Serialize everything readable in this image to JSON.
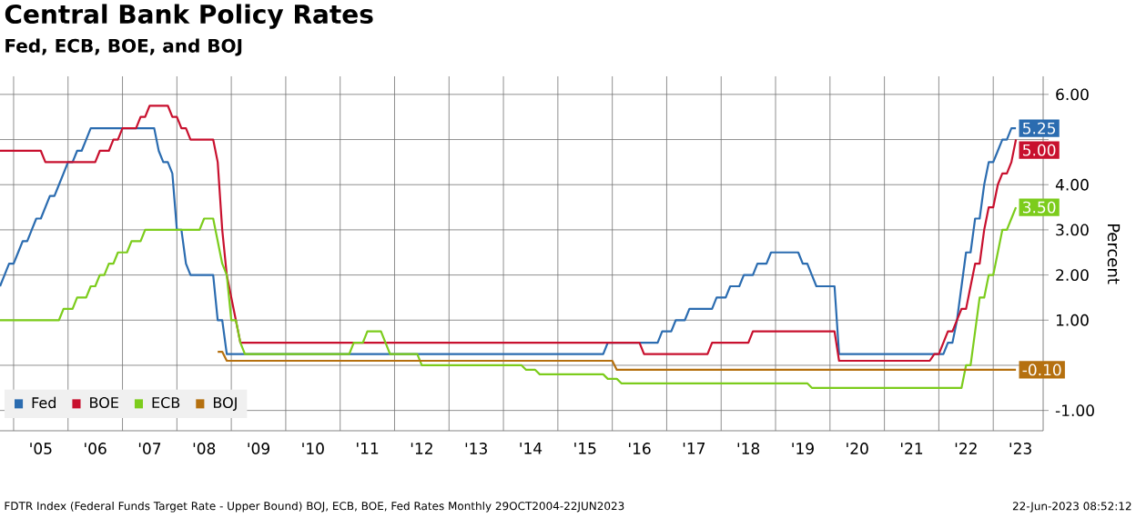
{
  "chart_data": {
    "type": "line",
    "title": "Central Bank Policy Rates",
    "subtitle": "Fed, ECB, BOE, and BOJ",
    "ylabel": "Percent",
    "annotations": [
      "FDTR Index (Federal Funds Target Rate - Upper Bound) BOJ, ECB, BOE, Fed Rates  Monthly 29OCT2004-22JUN2023",
      "22-Jun-2023 08:52:12"
    ],
    "xlim": [
      "2004-10",
      "2023-12"
    ],
    "ylim": [
      -1.45,
      6.4
    ],
    "xticks": [
      {
        "value": "2005",
        "label": null
      },
      {
        "value": "2005-07",
        "label": "'05"
      },
      {
        "value": "2006",
        "label": null
      },
      {
        "value": "2006-07",
        "label": "'06"
      },
      {
        "value": "2007",
        "label": null
      },
      {
        "value": "2007-07",
        "label": "'07"
      },
      {
        "value": "2008",
        "label": null
      },
      {
        "value": "2008-07",
        "label": "'08"
      },
      {
        "value": "2009",
        "label": null
      },
      {
        "value": "2009-07",
        "label": "'09"
      },
      {
        "value": "2010",
        "label": null
      },
      {
        "value": "2010-07",
        "label": "'10"
      },
      {
        "value": "2011",
        "label": null
      },
      {
        "value": "2011-07",
        "label": "'11"
      },
      {
        "value": "2012",
        "label": null
      },
      {
        "value": "2012-07",
        "label": "'12"
      },
      {
        "value": "2013",
        "label": null
      },
      {
        "value": "2013-07",
        "label": "'13"
      },
      {
        "value": "2014",
        "label": null
      },
      {
        "value": "2014-07",
        "label": "'14"
      },
      {
        "value": "2015",
        "label": null
      },
      {
        "value": "2015-07",
        "label": "'15"
      },
      {
        "value": "2016",
        "label": null
      },
      {
        "value": "2016-07",
        "label": "'16"
      },
      {
        "value": "2017",
        "label": null
      },
      {
        "value": "2017-07",
        "label": "'17"
      },
      {
        "value": "2018",
        "label": null
      },
      {
        "value": "2018-07",
        "label": "'18"
      },
      {
        "value": "2019",
        "label": null
      },
      {
        "value": "2019-07",
        "label": "'19"
      },
      {
        "value": "2020",
        "label": null
      },
      {
        "value": "2020-07",
        "label": "'20"
      },
      {
        "value": "2021",
        "label": null
      },
      {
        "value": "2021-07",
        "label": "'21"
      },
      {
        "value": "2022",
        "label": null
      },
      {
        "value": "2022-07",
        "label": "'22"
      },
      {
        "value": "2023",
        "label": null
      },
      {
        "value": "2023-07",
        "label": "'23"
      }
    ],
    "yticks": [
      {
        "value": -1,
        "label": "-1.00"
      },
      {
        "value": 0,
        "label": null
      },
      {
        "value": 1,
        "label": "1.00"
      },
      {
        "value": 2,
        "label": "2.00"
      },
      {
        "value": 3,
        "label": "3.00"
      },
      {
        "value": 4,
        "label": "4.00"
      },
      {
        "value": 5,
        "label": null
      },
      {
        "value": 6,
        "label": "6.00"
      }
    ],
    "grid": true,
    "legend": "bottom left",
    "series": [
      {
        "name": "Fed",
        "color": "#2b6cb0",
        "x": [
          "2004-10",
          "2004-11",
          "2004-12",
          "2005-01",
          "2005-02",
          "2005-03",
          "2005-04",
          "2005-05",
          "2005-06",
          "2005-07",
          "2005-08",
          "2005-09",
          "2005-10",
          "2005-11",
          "2005-12",
          "2006-01",
          "2006-02",
          "2006-03",
          "2006-04",
          "2006-05",
          "2006-06",
          "2007-08",
          "2007-09",
          "2007-10",
          "2007-11",
          "2007-12",
          "2008-01",
          "2008-02",
          "2008-03",
          "2008-04",
          "2008-09",
          "2008-10",
          "2008-11",
          "2008-12",
          "2015-11",
          "2015-12",
          "2016-11",
          "2016-12",
          "2017-02",
          "2017-03",
          "2017-05",
          "2017-06",
          "2017-11",
          "2017-12",
          "2018-02",
          "2018-03",
          "2018-05",
          "2018-06",
          "2018-08",
          "2018-09",
          "2018-11",
          "2018-12",
          "2019-06",
          "2019-07",
          "2019-08",
          "2019-09",
          "2019-10",
          "2020-02",
          "2020-03",
          "2022-02",
          "2022-03",
          "2022-04",
          "2022-05",
          "2022-06",
          "2022-07",
          "2022-08",
          "2022-09",
          "2022-10",
          "2022-11",
          "2022-12",
          "2023-01",
          "2023-02",
          "2023-03",
          "2023-04",
          "2023-05",
          "2023-06"
        ],
        "values": [
          1.75,
          2.0,
          2.25,
          2.25,
          2.5,
          2.75,
          2.75,
          3.0,
          3.25,
          3.25,
          3.5,
          3.75,
          3.75,
          4.0,
          4.25,
          4.5,
          4.5,
          4.75,
          4.75,
          5.0,
          5.25,
          5.25,
          4.75,
          4.5,
          4.5,
          4.25,
          3.0,
          3.0,
          2.25,
          2.0,
          2.0,
          1.0,
          1.0,
          0.25,
          0.25,
          0.5,
          0.5,
          0.75,
          0.75,
          1.0,
          1.0,
          1.25,
          1.25,
          1.5,
          1.5,
          1.75,
          1.75,
          2.0,
          2.0,
          2.25,
          2.25,
          2.5,
          2.5,
          2.25,
          2.25,
          2.0,
          1.75,
          1.75,
          0.25,
          0.25,
          0.5,
          0.5,
          1.0,
          1.75,
          2.5,
          2.5,
          3.25,
          3.25,
          4.0,
          4.5,
          4.5,
          4.75,
          5.0,
          5.0,
          5.25,
          5.25
        ],
        "value_labels": [
          null,
          null,
          null,
          null,
          null,
          null,
          null,
          null,
          null,
          null,
          null,
          null,
          null,
          null,
          null,
          null,
          null,
          null,
          null,
          null,
          null,
          null,
          null,
          null,
          null,
          null,
          null,
          null,
          null,
          null,
          null,
          null,
          null,
          null,
          null,
          null,
          null,
          null,
          null,
          null,
          null,
          null,
          null,
          null,
          null,
          null,
          null,
          null,
          null,
          null,
          null,
          null,
          null,
          null,
          null,
          null,
          null,
          null,
          null,
          null,
          null,
          null,
          null,
          null,
          null,
          null,
          null,
          null,
          null,
          null,
          null,
          null,
          null,
          null,
          null,
          "5.25"
        ]
      },
      {
        "name": "BOE",
        "color": "#c8102e",
        "x": [
          "2004-10",
          "2005-07",
          "2005-08",
          "2006-07",
          "2006-08",
          "2006-10",
          "2006-11",
          "2006-12",
          "2007-01",
          "2007-04",
          "2007-05",
          "2007-06",
          "2007-07",
          "2007-11",
          "2007-12",
          "2008-01",
          "2008-02",
          "2008-03",
          "2008-04",
          "2008-09",
          "2008-10",
          "2008-11",
          "2008-12",
          "2009-01",
          "2009-02",
          "2009-03",
          "2016-07",
          "2016-08",
          "2017-10",
          "2017-11",
          "2018-07",
          "2018-08",
          "2020-02",
          "2020-03",
          "2021-11",
          "2021-12",
          "2022-01",
          "2022-02",
          "2022-03",
          "2022-04",
          "2022-05",
          "2022-06",
          "2022-07",
          "2022-08",
          "2022-09",
          "2022-10",
          "2022-11",
          "2022-12",
          "2023-01",
          "2023-02",
          "2023-03",
          "2023-04",
          "2023-05",
          "2023-06"
        ],
        "values": [
          4.75,
          4.75,
          4.5,
          4.5,
          4.75,
          4.75,
          5.0,
          5.0,
          5.25,
          5.25,
          5.5,
          5.5,
          5.75,
          5.75,
          5.5,
          5.5,
          5.25,
          5.25,
          5.0,
          5.0,
          4.5,
          3.0,
          2.0,
          1.5,
          1.0,
          0.5,
          0.5,
          0.25,
          0.25,
          0.5,
          0.5,
          0.75,
          0.75,
          0.1,
          0.1,
          0.25,
          0.25,
          0.5,
          0.75,
          0.75,
          1.0,
          1.25,
          1.25,
          1.75,
          2.25,
          2.25,
          3.0,
          3.5,
          3.5,
          4.0,
          4.25,
          4.25,
          4.5,
          5.0
        ],
        "value_labels": [
          null,
          null,
          null,
          null,
          null,
          null,
          null,
          null,
          null,
          null,
          null,
          null,
          null,
          null,
          null,
          null,
          null,
          null,
          null,
          null,
          null,
          null,
          null,
          null,
          null,
          null,
          null,
          null,
          null,
          null,
          null,
          null,
          null,
          null,
          null,
          null,
          null,
          null,
          null,
          null,
          null,
          null,
          null,
          null,
          null,
          null,
          null,
          null,
          null,
          null,
          null,
          null,
          null,
          "5.00"
        ]
      },
      {
        "name": "ECB",
        "color": "#7ccc1c",
        "x": [
          "2004-10",
          "2005-11",
          "2005-12",
          "2006-02",
          "2006-03",
          "2006-05",
          "2006-06",
          "2006-07",
          "2006-08",
          "2006-09",
          "2006-10",
          "2006-11",
          "2006-12",
          "2007-02",
          "2007-03",
          "2007-05",
          "2007-06",
          "2008-06",
          "2008-07",
          "2008-09",
          "2008-10",
          "2008-11",
          "2008-12",
          "2009-01",
          "2009-02",
          "2009-03",
          "2009-04",
          "2011-03",
          "2011-04",
          "2011-06",
          "2011-07",
          "2011-10",
          "2011-11",
          "2011-12",
          "2012-06",
          "2012-07",
          "2014-05",
          "2014-06",
          "2014-08",
          "2014-09",
          "2015-11",
          "2015-12",
          "2016-02",
          "2016-03",
          "2019-08",
          "2019-09",
          "2022-06",
          "2022-07",
          "2022-08",
          "2022-09",
          "2022-10",
          "2022-11",
          "2022-12",
          "2023-01",
          "2023-02",
          "2023-03",
          "2023-04",
          "2023-05",
          "2023-06"
        ],
        "values": [
          1.0,
          1.0,
          1.25,
          1.25,
          1.5,
          1.5,
          1.75,
          1.75,
          2.0,
          2.0,
          2.25,
          2.25,
          2.5,
          2.5,
          2.75,
          2.75,
          3.0,
          3.0,
          3.25,
          3.25,
          2.75,
          2.25,
          2.0,
          1.0,
          1.0,
          0.5,
          0.25,
          0.25,
          0.5,
          0.5,
          0.75,
          0.75,
          0.5,
          0.25,
          0.25,
          0.0,
          0.0,
          -0.1,
          -0.1,
          -0.2,
          -0.2,
          -0.3,
          -0.3,
          -0.4,
          -0.4,
          -0.5,
          -0.5,
          0.0,
          0.0,
          0.75,
          1.5,
          1.5,
          2.0,
          2.0,
          2.5,
          3.0,
          3.0,
          3.25,
          3.5
        ],
        "value_labels": [
          null,
          null,
          null,
          null,
          null,
          null,
          null,
          null,
          null,
          null,
          null,
          null,
          null,
          null,
          null,
          null,
          null,
          null,
          null,
          null,
          null,
          null,
          null,
          null,
          null,
          null,
          null,
          null,
          null,
          null,
          null,
          null,
          null,
          null,
          null,
          null,
          null,
          null,
          null,
          null,
          null,
          null,
          null,
          null,
          null,
          null,
          null,
          null,
          null,
          null,
          null,
          null,
          null,
          null,
          null,
          null,
          null,
          null,
          "3.50"
        ]
      },
      {
        "name": "BOJ",
        "color": "#b5700f",
        "x": [
          "2008-10",
          "2008-11",
          "2008-12",
          "2016-01",
          "2016-02",
          "2023-06"
        ],
        "values": [
          0.3,
          0.3,
          0.1,
          0.1,
          -0.1,
          -0.1
        ],
        "value_labels": [
          null,
          null,
          null,
          null,
          null,
          "-0.10"
        ]
      }
    ]
  }
}
